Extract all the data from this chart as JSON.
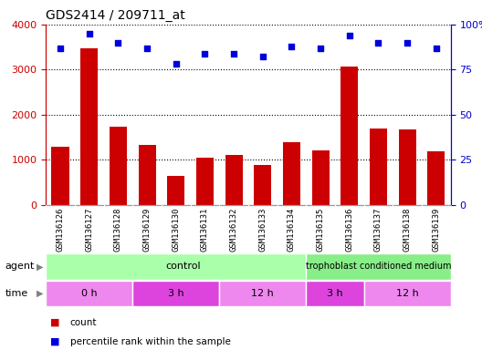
{
  "title": "GDS2414 / 209711_at",
  "samples": [
    "GSM136126",
    "GSM136127",
    "GSM136128",
    "GSM136129",
    "GSM136130",
    "GSM136131",
    "GSM136132",
    "GSM136133",
    "GSM136134",
    "GSM136135",
    "GSM136136",
    "GSM136137",
    "GSM136138",
    "GSM136139"
  ],
  "counts": [
    1280,
    3480,
    1730,
    1330,
    640,
    1040,
    1110,
    890,
    1390,
    1200,
    3060,
    1700,
    1680,
    1190
  ],
  "percentile_ranks": [
    87,
    95,
    90,
    87,
    78,
    84,
    84,
    82,
    88,
    87,
    94,
    90,
    90,
    87
  ],
  "bar_color": "#cc0000",
  "dot_color": "#0000dd",
  "ylim_left": [
    0,
    4000
  ],
  "ylim_right": [
    0,
    100
  ],
  "yticks_left": [
    0,
    1000,
    2000,
    3000,
    4000
  ],
  "yticks_right": [
    0,
    25,
    50,
    75,
    100
  ],
  "grid_color": "#000000",
  "tick_label_color_left": "#cc0000",
  "tick_label_color_right": "#0000cc",
  "background_color": "#ffffff",
  "xticklabel_area_color": "#cccccc",
  "agent_control_color": "#aaffaa",
  "agent_tcm_color": "#88ee88",
  "time_colors": [
    "#ee88ee",
    "#dd44dd",
    "#ee88ee",
    "#dd44dd",
    "#ee88ee"
  ],
  "control_count": 9,
  "time_groups": [
    {
      "label": "0 h",
      "start": 0,
      "end": 3
    },
    {
      "label": "3 h",
      "start": 3,
      "end": 6
    },
    {
      "label": "12 h",
      "start": 6,
      "end": 9
    },
    {
      "label": "3 h",
      "start": 9,
      "end": 11
    },
    {
      "label": "12 h",
      "start": 11,
      "end": 14
    }
  ]
}
